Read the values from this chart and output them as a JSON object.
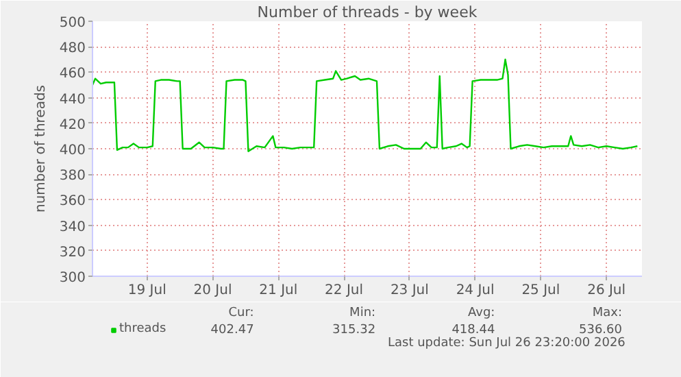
{
  "chart_data": {
    "type": "line",
    "title": "Number of threads - by week",
    "ylabel": "number of threads",
    "x": [
      "2026-07-18T16:00",
      "2026-07-18T17:00",
      "2026-07-18T19:00",
      "2026-07-18T21:00",
      "2026-07-18T23:00",
      "2026-07-19T00:00",
      "2026-07-19T01:00",
      "2026-07-19T03:00",
      "2026-07-19T05:00",
      "2026-07-19T07:00",
      "2026-07-19T09:00",
      "2026-07-19T12:00",
      "2026-07-19T14:00",
      "2026-07-19T15:00",
      "2026-07-19T17:00",
      "2026-07-19T20:00",
      "2026-07-19T23:00",
      "2026-07-20T00:00",
      "2026-07-20T01:00",
      "2026-07-20T04:00",
      "2026-07-20T07:00",
      "2026-07-20T09:00",
      "2026-07-20T12:00",
      "2026-07-20T15:00",
      "2026-07-20T16:00",
      "2026-07-20T17:00",
      "2026-07-20T20:00",
      "2026-07-20T23:00",
      "2026-07-21T00:00",
      "2026-07-21T01:00",
      "2026-07-21T04:00",
      "2026-07-21T07:00",
      "2026-07-21T10:00",
      "2026-07-21T11:00",
      "2026-07-21T14:00",
      "2026-07-21T17:00",
      "2026-07-21T20:00",
      "2026-07-22T00:00",
      "2026-07-22T01:00",
      "2026-07-22T02:00",
      "2026-07-22T05:00",
      "2026-07-22T08:00",
      "2026-07-22T09:00",
      "2026-07-22T11:00",
      "2026-07-22T13:00",
      "2026-07-22T16:00",
      "2026-07-22T18:00",
      "2026-07-22T21:00",
      "2026-07-23T00:00",
      "2026-07-23T01:00",
      "2026-07-23T04:00",
      "2026-07-23T07:00",
      "2026-07-23T10:00",
      "2026-07-23T13:00",
      "2026-07-23T16:00",
      "2026-07-23T18:00",
      "2026-07-23T20:00",
      "2026-07-23T22:00",
      "2026-07-23T23:00",
      "2026-07-24T00:00",
      "2026-07-24T02:00",
      "2026-07-24T05:00",
      "2026-07-24T07:00",
      "2026-07-24T09:00",
      "2026-07-24T10:00",
      "2026-07-24T11:00",
      "2026-07-24T14:00",
      "2026-07-24T17:00",
      "2026-07-24T20:00",
      "2026-07-24T22:00",
      "2026-07-24T23:00",
      "2026-07-25T00:00",
      "2026-07-25T01:00",
      "2026-07-25T04:00",
      "2026-07-25T07:00",
      "2026-07-25T10:00",
      "2026-07-25T13:00",
      "2026-07-25T16:00",
      "2026-07-25T19:00",
      "2026-07-25T22:00",
      "2026-07-25T23:00",
      "2026-07-26T00:00",
      "2026-07-26T03:00",
      "2026-07-26T06:00",
      "2026-07-26T09:00",
      "2026-07-26T12:00",
      "2026-07-26T15:00",
      "2026-07-26T18:00",
      "2026-07-26T21:00",
      "2026-07-26T23:20"
    ],
    "series": [
      {
        "name": "threads",
        "color": "#00cc00",
        "values": [
          450,
          455,
          451,
          452,
          452,
          452,
          399,
          401,
          401,
          404,
          401,
          401,
          402,
          453,
          454,
          454,
          453,
          453,
          400,
          400,
          405,
          401,
          401,
          400,
          400,
          453,
          454,
          454,
          453,
          398,
          402,
          401,
          410,
          401,
          401,
          400,
          401,
          401,
          401,
          453,
          454,
          455,
          461,
          454,
          455,
          457,
          454,
          455,
          453,
          400,
          402,
          403,
          400,
          400,
          400,
          405,
          401,
          401,
          457,
          400,
          401,
          402,
          404,
          401,
          402,
          453,
          454,
          454,
          454,
          455,
          470,
          458,
          400,
          402,
          403,
          402,
          401,
          402,
          402,
          402,
          410,
          403,
          402,
          403,
          401,
          402,
          401,
          400,
          401,
          402
        ]
      }
    ],
    "xlim": [
      "2026-07-18T16:00",
      "2026-07-27T01:00"
    ],
    "xticks": [
      {
        "value": "2026-07-19T12:00",
        "label": "19 Jul"
      },
      {
        "value": "2026-07-20T12:00",
        "label": "20 Jul"
      },
      {
        "value": "2026-07-21T12:00",
        "label": "21 Jul"
      },
      {
        "value": "2026-07-22T12:00",
        "label": "22 Jul"
      },
      {
        "value": "2026-07-23T12:00",
        "label": "23 Jul"
      },
      {
        "value": "2026-07-24T12:00",
        "label": "24 Jul"
      },
      {
        "value": "2026-07-25T12:00",
        "label": "25 Jul"
      },
      {
        "value": "2026-07-26T12:00",
        "label": "26 Jul"
      }
    ],
    "ylim": [
      300,
      500
    ],
    "yticks": [
      300,
      320,
      340,
      360,
      380,
      400,
      420,
      440,
      460,
      480,
      500
    ],
    "grid": true,
    "legend": "bottom left",
    "marker": "none",
    "line_style": "solid",
    "annotations": [
      "Cur:",
      "Min:",
      "Avg:",
      "Max:",
      "402.47",
      "315.32",
      "418.44",
      "536.60",
      "Last update: Sun Jul 26 23:20:00 2026"
    ]
  }
}
